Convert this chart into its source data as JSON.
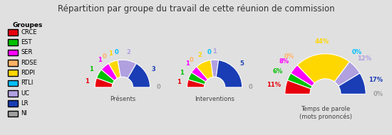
{
  "title": "Répartition par groupe du travail de cette réunion de commission",
  "background_color": "#e0e0e0",
  "groups": [
    "CRCE",
    "EST",
    "SER",
    "RDSE",
    "RDPI",
    "RTLI",
    "UC",
    "LR",
    "NI"
  ],
  "colors": [
    "#e8000d",
    "#00c000",
    "#ff00ff",
    "#ffb366",
    "#ffd700",
    "#00bfff",
    "#b0a0e0",
    "#1a3db5",
    "#a0a0a0"
  ],
  "presences": [
    1,
    1,
    1,
    0,
    1,
    0,
    2,
    3,
    0
  ],
  "interventions": [
    1,
    1,
    1,
    0,
    2,
    0,
    1,
    5,
    0
  ],
  "temps_parole": [
    11,
    6,
    8,
    0,
    44,
    0,
    12,
    17,
    0
  ],
  "chart_titles": [
    "Présents",
    "Interventions",
    "Temps de parole\n(mots prononcés)"
  ],
  "legend_title": "Groupes"
}
